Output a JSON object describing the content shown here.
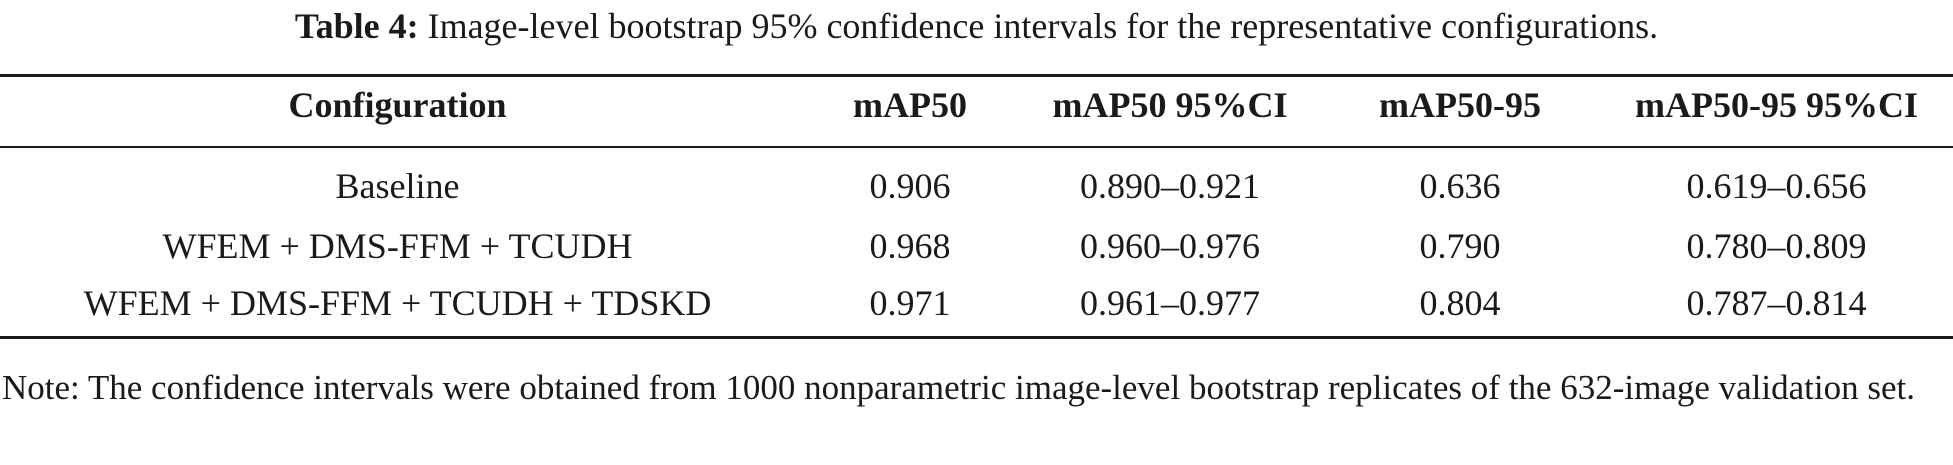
{
  "caption": {
    "label": "Table 4:",
    "text": "Image-level bootstrap 95% confidence intervals for the representative configurations."
  },
  "table": {
    "headers": [
      "Configuration",
      "mAP50",
      "mAP50 95%CI",
      "mAP50-95",
      "mAP50-95 95%CI"
    ],
    "rows": [
      [
        "Baseline",
        "0.906",
        "0.890–0.921",
        "0.636",
        "0.619–0.656"
      ],
      [
        "WFEM + DMS-FFM + TCUDH",
        "0.968",
        "0.960–0.976",
        "0.790",
        "0.780–0.809"
      ],
      [
        "WFEM + DMS-FFM + TCUDH + TDSKD",
        "0.971",
        "0.961–0.977",
        "0.804",
        "0.787–0.814"
      ]
    ]
  },
  "note": "Note: The confidence intervals were obtained from 1000 nonparametric image-level bootstrap replicates of the 632-image validation set."
}
